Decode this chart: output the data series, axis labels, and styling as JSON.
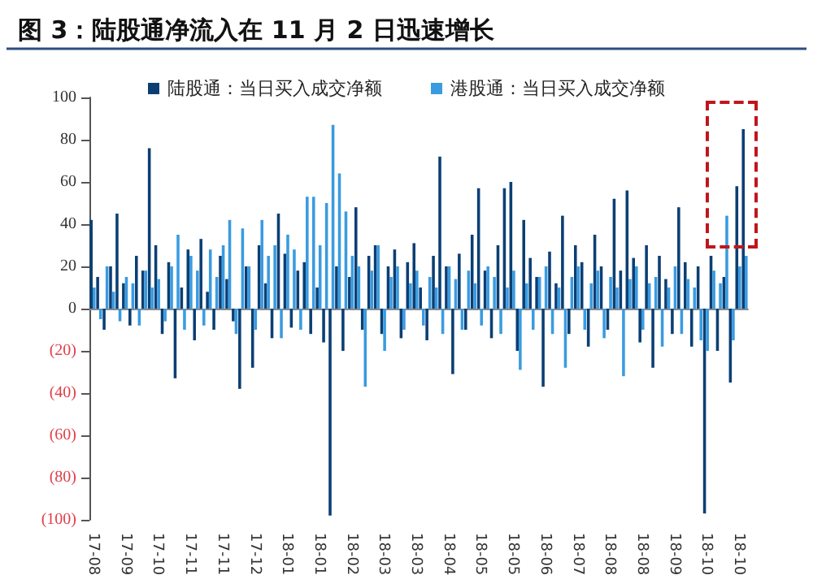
{
  "chart_data": {
    "type": "bar",
    "title": "图 3：陆股通净流入在 11 月 2 日迅速增长",
    "categories": [
      "17-08",
      null,
      null,
      null,
      null,
      "17-09",
      null,
      null,
      null,
      null,
      "17-10",
      null,
      null,
      null,
      null,
      "17-11",
      null,
      null,
      null,
      null,
      "17-11",
      null,
      null,
      null,
      null,
      "17-12",
      null,
      null,
      null,
      null,
      "18-01",
      null,
      null,
      null,
      null,
      "18-01",
      null,
      null,
      null,
      null,
      "18-02",
      null,
      null,
      null,
      null,
      "18-03",
      null,
      null,
      null,
      null,
      "18-03",
      null,
      null,
      null,
      null,
      "18-04",
      null,
      null,
      null,
      null,
      "18-05",
      null,
      null,
      null,
      null,
      "18-05",
      null,
      null,
      null,
      null,
      "18-06",
      null,
      null,
      null,
      null,
      "18-07",
      null,
      null,
      null,
      null,
      "18-08",
      null,
      null,
      null,
      null,
      "18-08",
      null,
      null,
      null,
      null,
      "18-09",
      null,
      null,
      null,
      null,
      "18-10",
      null,
      null,
      null,
      null,
      "18-10",
      null
    ],
    "series": [
      {
        "name": "陆股通：当日买入成交净额",
        "color": "#0b3f74",
        "values": [
          42,
          15,
          -10,
          20,
          45,
          12,
          -8,
          25,
          18,
          76,
          30,
          -12,
          22,
          -33,
          10,
          28,
          -15,
          33,
          8,
          -10,
          25,
          14,
          -6,
          -38,
          20,
          -28,
          30,
          12,
          -14,
          45,
          26,
          -9,
          18,
          22,
          -12,
          10,
          -16,
          -98,
          20,
          -20,
          15,
          48,
          -10,
          25,
          30,
          -12,
          20,
          28,
          -14,
          22,
          31,
          10,
          -15,
          25,
          72,
          20,
          -31,
          26,
          -10,
          35,
          57,
          18,
          -14,
          30,
          57,
          60,
          -20,
          42,
          24,
          15,
          -37,
          27,
          12,
          44,
          -12,
          30,
          22,
          -18,
          35,
          20,
          -10,
          52,
          18,
          56,
          24,
          -16,
          30,
          -28,
          25,
          14,
          -12,
          48,
          22,
          -18,
          20,
          -97,
          25,
          -20,
          15,
          -35,
          58,
          85
        ]
      },
      {
        "name": "港股通：当日买入成交净额",
        "color": "#3a9be0",
        "values": [
          10,
          -5,
          20,
          8,
          -6,
          15,
          12,
          -8,
          18,
          10,
          14,
          -6,
          20,
          35,
          -10,
          25,
          18,
          -8,
          28,
          15,
          30,
          42,
          -12,
          38,
          20,
          -10,
          42,
          25,
          30,
          -14,
          35,
          28,
          -10,
          53,
          53,
          30,
          50,
          87,
          64,
          46,
          25,
          20,
          -37,
          18,
          30,
          -20,
          15,
          20,
          -10,
          12,
          18,
          -8,
          15,
          10,
          -12,
          20,
          14,
          -10,
          18,
          12,
          -8,
          20,
          15,
          -12,
          10,
          18,
          -29,
          12,
          -10,
          15,
          20,
          -12,
          10,
          -28,
          15,
          20,
          -10,
          12,
          18,
          -14,
          15,
          10,
          -32,
          14,
          20,
          -10,
          12,
          15,
          -18,
          10,
          20,
          -12,
          14,
          10,
          -15,
          -20,
          18,
          12,
          44,
          -15,
          20,
          25
        ]
      }
    ],
    "ylim": [
      -100,
      100
    ],
    "yticks": [
      {
        "value": -100,
        "label": "(100)"
      },
      {
        "value": -80,
        "label": "(80)"
      },
      {
        "value": -60,
        "label": "(60)"
      },
      {
        "value": -40,
        "label": "(40)"
      },
      {
        "value": -20,
        "label": "(20)"
      },
      0,
      20,
      40,
      60,
      80,
      100
    ],
    "legend": "top"
  }
}
